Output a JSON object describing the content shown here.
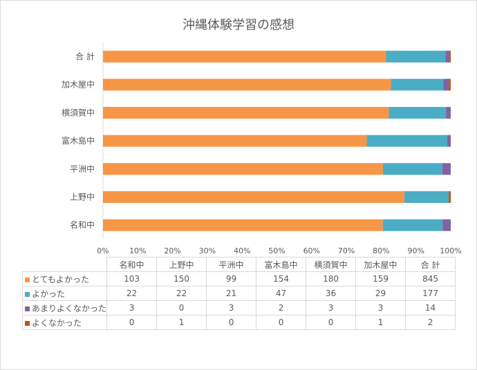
{
  "chart_data": {
    "type": "bar",
    "orientation": "horizontal",
    "stacked": "percent",
    "title": "沖縄体験学習の感想",
    "categories": [
      "名和中",
      "上野中",
      "平洲中",
      "富木島中",
      "横須賀中",
      "加木屋中",
      "合 計"
    ],
    "series": [
      {
        "name": "とてもよかった",
        "color": "#F79646",
        "values": [
          103,
          150,
          99,
          154,
          180,
          159,
          845
        ]
      },
      {
        "name": "よかった",
        "color": "#4BACC6",
        "values": [
          22,
          22,
          21,
          47,
          36,
          29,
          177
        ]
      },
      {
        "name": "あまりよくなかった",
        "color": "#8064A2",
        "values": [
          3,
          0,
          3,
          2,
          3,
          3,
          14
        ]
      },
      {
        "name": "よくなかった",
        "color": "#C0560F",
        "values": [
          0,
          1,
          0,
          0,
          0,
          1,
          2
        ]
      }
    ],
    "xlim": [
      0,
      100
    ],
    "x_ticks": [
      "0%",
      "10%",
      "20%",
      "30%",
      "40%",
      "50%",
      "60%",
      "70%",
      "80%",
      "90%",
      "100%"
    ],
    "grid": false,
    "legend": "data-table-below"
  }
}
